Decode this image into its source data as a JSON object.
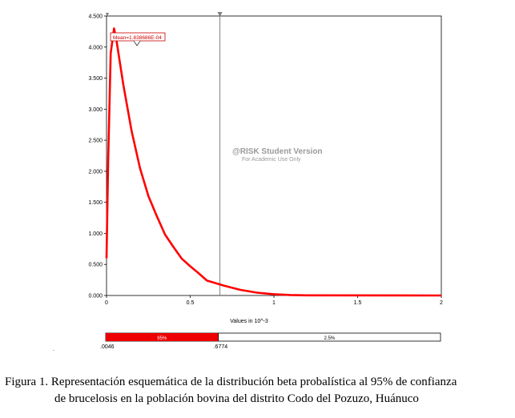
{
  "chart_data": {
    "type": "line",
    "xlabel": "Values in 10^-3",
    "ylabel": "",
    "xlim": [
      0,
      2
    ],
    "ylim": [
      0,
      4500
    ],
    "x_ticks": [
      "0",
      "0.5",
      "1",
      "1.5",
      "2"
    ],
    "y_ticks": [
      "0.000",
      "0.500",
      "1.000",
      "1.500",
      "2.000",
      "2.500",
      "3.000",
      "3.500",
      "4.000",
      "4.500"
    ],
    "series": [
      {
        "color": "#ff0000",
        "x": [
          0,
          0.01,
          0.025,
          0.045,
          0.06,
          0.1,
          0.15,
          0.2,
          0.25,
          0.3,
          0.35,
          0.4,
          0.45,
          0.5,
          0.55,
          0.6,
          0.7,
          0.8,
          0.9,
          1.0,
          1.1,
          1.2
        ],
        "y": [
          600,
          2200,
          3900,
          4300,
          4100,
          3400,
          2650,
          2050,
          1600,
          1280,
          980,
          780,
          590,
          470,
          360,
          240,
          160,
          90,
          45,
          20,
          8,
          2
        ]
      }
    ],
    "mean_marker": {
      "label": "Mean=1.838686E-04",
      "x": 0.1839
    },
    "cursor_line_x": 0.6774,
    "left_cursor_x": 0.0046,
    "watermark": [
      "@RISK Student Version",
      "For Academic Use Only"
    ],
    "probability_bar": {
      "left_value": ".0046",
      "right_value": ".6774",
      "left_pct": "95%",
      "right_pct": "2.5%",
      "fill_fraction": 0.3364
    }
  },
  "caption": {
    "line1": "Figura 1. Representación esquemática de la distribución beta probalística al 95% de confianza",
    "line2": "de brucelosis en la población bovina del distrito Codo del Pozuzo, Huánuco"
  },
  "colors": {
    "curve": "#ff0000",
    "bar_fill": "#ee0000",
    "grid_line": "#808080"
  }
}
